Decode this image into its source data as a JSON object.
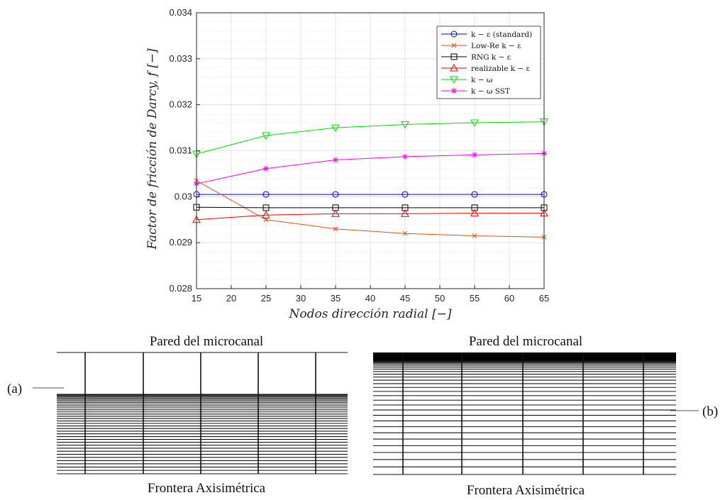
{
  "chart_data": {
    "type": "line",
    "xlabel": "Nodos dirección radial [−]",
    "ylabel": "Factor de fricción de Darcy, f [−]",
    "xlim": [
      15,
      65
    ],
    "ylim": [
      0.028,
      0.034
    ],
    "xticks": [
      "15",
      "20",
      "25",
      "30",
      "35",
      "40",
      "45",
      "50",
      "55",
      "60",
      "65"
    ],
    "yticks": [
      "0.028",
      "0.029",
      "0.03",
      "0.031",
      "0.032",
      "0.033",
      "0.034"
    ],
    "grid": true,
    "minor_grid": true,
    "legend_position": "top-right",
    "x": [
      15,
      25,
      35,
      45,
      55,
      65
    ],
    "series": [
      {
        "name": "k − ε (standard)",
        "color": "#0000ff",
        "marker": "circle",
        "values": [
          0.03005,
          0.03005,
          0.03005,
          0.03005,
          0.03005,
          0.03005
        ]
      },
      {
        "name": "Low-Re k − ε",
        "color": "#d95319",
        "marker": "x",
        "values": [
          0.03035,
          0.0295,
          0.0293,
          0.0292,
          0.02915,
          0.02912
        ]
      },
      {
        "name": "RNG k − ε",
        "color": "#000000",
        "marker": "square",
        "values": [
          0.02977,
          0.02976,
          0.02976,
          0.02976,
          0.02976,
          0.02976
        ]
      },
      {
        "name": "realizable k − ε",
        "color": "#ff0000",
        "marker": "triangle-up",
        "values": [
          0.0295,
          0.0296,
          0.02963,
          0.02963,
          0.02964,
          0.02964
        ]
      },
      {
        "name": "k − ω",
        "color": "#00dd00",
        "marker": "triangle-down",
        "values": [
          0.03093,
          0.03133,
          0.0315,
          0.03157,
          0.03161,
          0.03163
        ]
      },
      {
        "name": "k − ω SST",
        "color": "#ff00ff",
        "marker": "asterisk",
        "values": [
          0.03028,
          0.03061,
          0.0308,
          0.03087,
          0.03091,
          0.03094
        ]
      }
    ]
  },
  "mesh_a": {
    "label_top": "Pared del microcanal",
    "label_bottom": "Frontera Axisimétrica",
    "callout": "(a)"
  },
  "mesh_b": {
    "label_top": "Pared del microcanal",
    "label_bottom": "Frontera Axisimétrica",
    "callout": "(b)"
  }
}
